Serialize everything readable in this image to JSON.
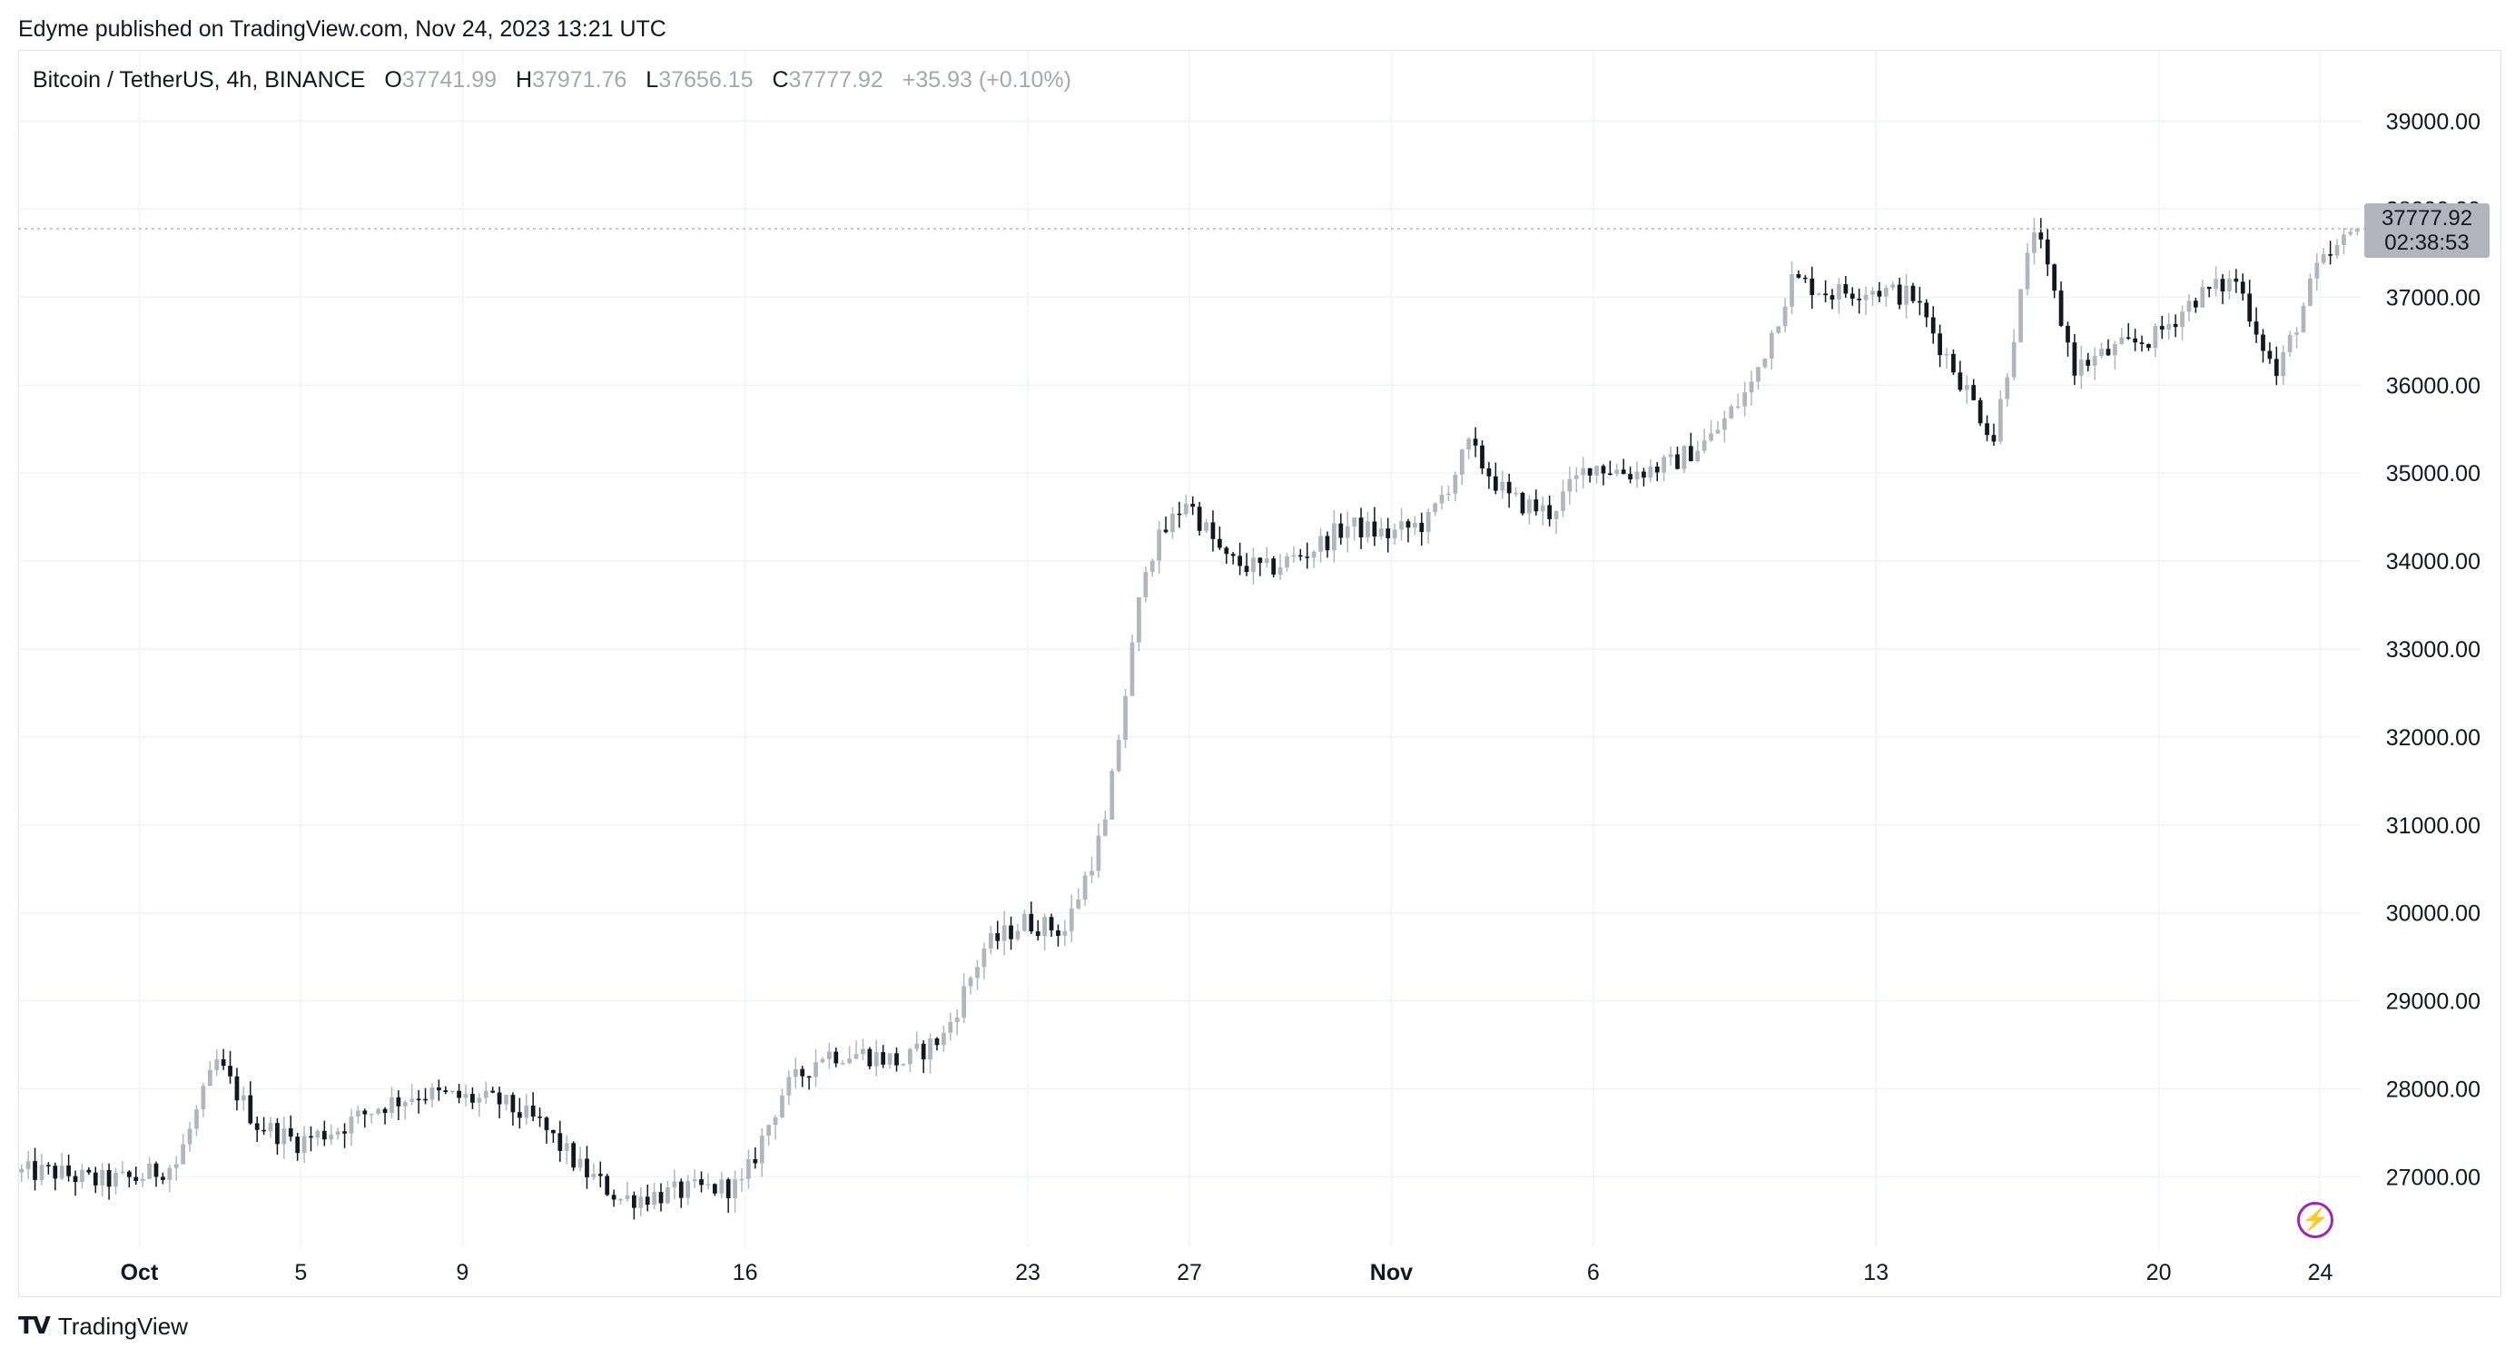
{
  "publisher_text": "Edyme published on TradingView.com, Nov 24, 2023 13:21 UTC",
  "legend": {
    "symbol": "Bitcoin / TetherUS, 4h, BINANCE",
    "open_label": "O",
    "open": "37741.99",
    "high_label": "H",
    "high": "37971.76",
    "low_label": "L",
    "low": "37656.15",
    "close_label": "C",
    "close": "37777.92",
    "change": "+35.93 (+0.10%)"
  },
  "price_badge": {
    "price": "37777.92",
    "countdown": "02:38:53"
  },
  "footer": {
    "brand": "TradingView",
    "logo_icon": "tradingview-logo-icon"
  },
  "flash_icon": "lightning-icon",
  "colors": {
    "up": "#b2b5be",
    "down": "#131722",
    "grid": "#f0f3fa",
    "badge": "#b2b5be",
    "flash": "#9c27b0"
  },
  "chart_data": {
    "type": "candlestick",
    "title": "Bitcoin / TetherUS, 4h, BINANCE",
    "timeframe": "4h",
    "ylim": [
      26200,
      39800
    ],
    "y_ticks": [
      27000,
      28000,
      29000,
      30000,
      31000,
      32000,
      33000,
      34000,
      35000,
      36000,
      37000,
      38000,
      39000
    ],
    "y_tick_labels": [
      "27000.00",
      "28000.00",
      "29000.00",
      "30000.00",
      "31000.00",
      "32000.00",
      "33000.00",
      "34000.00",
      "35000.00",
      "36000.00",
      "37000.00",
      "38000.00",
      "39000.00"
    ],
    "x_ticks": [
      {
        "label": "Oct",
        "date": "2023-10-01",
        "bold": true
      },
      {
        "label": "5",
        "date": "2023-10-05",
        "bold": false
      },
      {
        "label": "9",
        "date": "2023-10-09",
        "bold": false
      },
      {
        "label": "16",
        "date": "2023-10-16",
        "bold": false
      },
      {
        "label": "23",
        "date": "2023-10-23",
        "bold": false
      },
      {
        "label": "27",
        "date": "2023-10-27",
        "bold": false
      },
      {
        "label": "Nov",
        "date": "2023-11-01",
        "bold": true
      },
      {
        "label": "6",
        "date": "2023-11-06",
        "bold": false
      },
      {
        "label": "13",
        "date": "2023-11-13",
        "bold": false
      },
      {
        "label": "20",
        "date": "2023-11-20",
        "bold": false
      },
      {
        "label": "24",
        "date": "2023-11-24",
        "bold": false
      }
    ],
    "date_range": [
      "2023-09-28",
      "2023-11-24"
    ],
    "last_price": 37777.92,
    "daily_closes": [
      {
        "date": "2023-09-28",
        "close": 27050
      },
      {
        "date": "2023-09-29",
        "close": 26950
      },
      {
        "date": "2023-09-30",
        "close": 26980
      },
      {
        "date": "2023-10-01",
        "close": 27150
      },
      {
        "date": "2023-10-02",
        "close": 28300
      },
      {
        "date": "2023-10-03",
        "close": 27600
      },
      {
        "date": "2023-10-04",
        "close": 27400
      },
      {
        "date": "2023-10-05",
        "close": 27550
      },
      {
        "date": "2023-10-06",
        "close": 27800
      },
      {
        "date": "2023-10-07",
        "close": 27950
      },
      {
        "date": "2023-10-08",
        "close": 27900
      },
      {
        "date": "2023-10-09",
        "close": 27850
      },
      {
        "date": "2023-10-10",
        "close": 27600
      },
      {
        "date": "2023-10-11",
        "close": 27100
      },
      {
        "date": "2023-10-12",
        "close": 26750
      },
      {
        "date": "2023-10-13",
        "close": 26800
      },
      {
        "date": "2023-10-14",
        "close": 26860
      },
      {
        "date": "2023-10-15",
        "close": 26900
      },
      {
        "date": "2023-10-16",
        "close": 27950
      },
      {
        "date": "2023-10-17",
        "close": 28400
      },
      {
        "date": "2023-10-18",
        "close": 28400
      },
      {
        "date": "2023-10-19",
        "close": 28300
      },
      {
        "date": "2023-10-20",
        "close": 28600
      },
      {
        "date": "2023-10-21",
        "close": 29600
      },
      {
        "date": "2023-10-22",
        "close": 29900
      },
      {
        "date": "2023-10-23",
        "close": 29800
      },
      {
        "date": "2023-10-24",
        "close": 31000
      },
      {
        "date": "2023-10-25",
        "close": 34000
      },
      {
        "date": "2023-10-26",
        "close": 34700
      },
      {
        "date": "2023-10-27",
        "close": 34000
      },
      {
        "date": "2023-10-28",
        "close": 33900
      },
      {
        "date": "2023-10-29",
        "close": 34100
      },
      {
        "date": "2023-10-30",
        "close": 34400
      },
      {
        "date": "2023-10-31",
        "close": 34300
      },
      {
        "date": "2023-11-01",
        "close": 34450
      },
      {
        "date": "2023-11-02",
        "close": 35300
      },
      {
        "date": "2023-11-03",
        "close": 34700
      },
      {
        "date": "2023-11-04",
        "close": 34550
      },
      {
        "date": "2023-11-05",
        "close": 35100
      },
      {
        "date": "2023-11-06",
        "close": 35000
      },
      {
        "date": "2023-11-07",
        "close": 35100
      },
      {
        "date": "2023-11-08",
        "close": 35400
      },
      {
        "date": "2023-11-09",
        "close": 36000
      },
      {
        "date": "2023-11-10",
        "close": 37200
      },
      {
        "date": "2023-11-11",
        "close": 37050
      },
      {
        "date": "2023-11-12",
        "close": 37100
      },
      {
        "date": "2023-11-13",
        "close": 37000
      },
      {
        "date": "2023-11-14",
        "close": 36200
      },
      {
        "date": "2023-11-15",
        "close": 35400
      },
      {
        "date": "2023-11-16",
        "close": 37800
      },
      {
        "date": "2023-11-17",
        "close": 36200
      },
      {
        "date": "2023-11-18",
        "close": 36400
      },
      {
        "date": "2023-11-19",
        "close": 36550
      },
      {
        "date": "2023-11-20",
        "close": 37000
      },
      {
        "date": "2023-11-21",
        "close": 37200
      },
      {
        "date": "2023-11-22",
        "close": 36100
      },
      {
        "date": "2023-11-23",
        "close": 37300
      },
      {
        "date": "2023-11-24",
        "close": 37777.92
      }
    ]
  }
}
